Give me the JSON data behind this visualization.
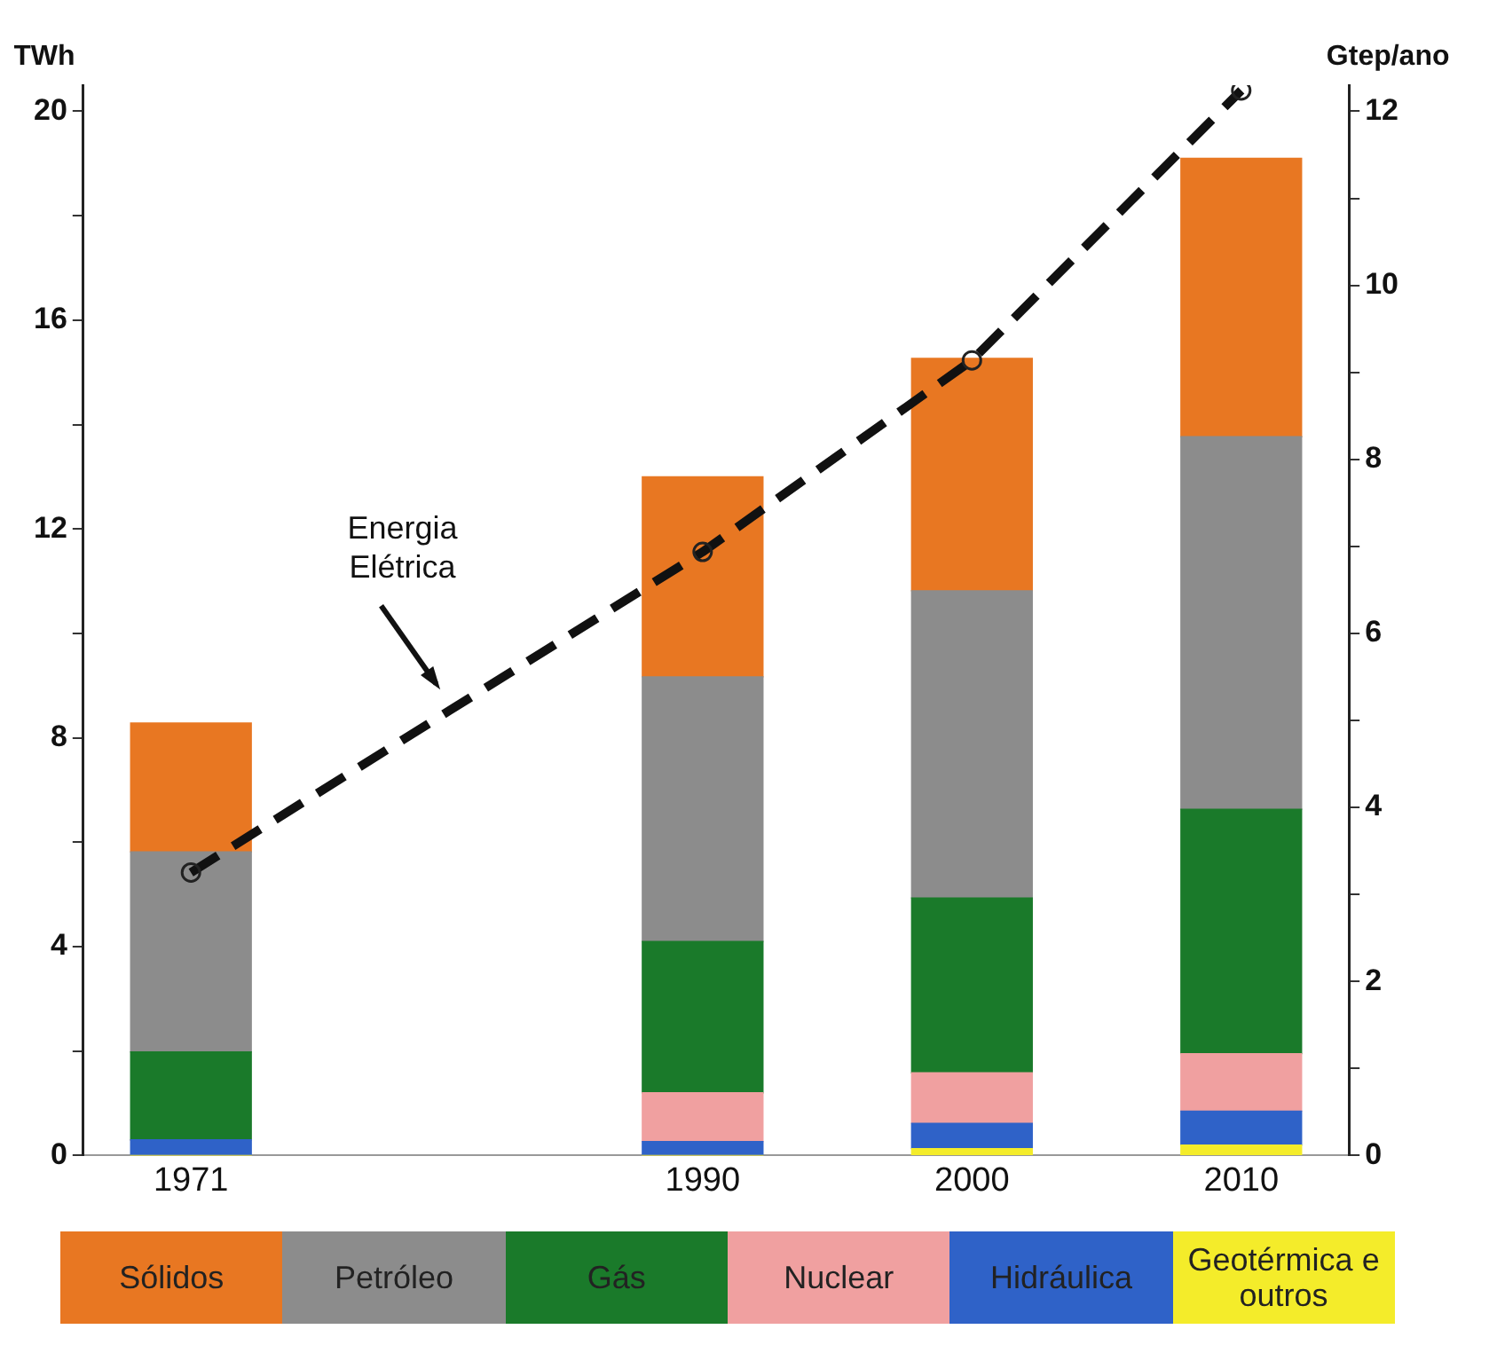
{
  "chart_data": {
    "type": "bar",
    "stacked": true,
    "ylabel": "TWh",
    "y2label": "Gtep/ano",
    "x": [
      1971,
      1990,
      2000,
      2010
    ],
    "xlim": [
      1967,
      2014
    ],
    "xticks": [
      1971,
      1990,
      2000,
      2010
    ],
    "ylim": [
      0,
      20.5
    ],
    "yticks": [
      0,
      {
        "value": 2,
        "label": null
      },
      4,
      {
        "value": 6,
        "label": null
      },
      8,
      {
        "value": 10,
        "label": null
      },
      12,
      {
        "value": 14,
        "label": null
      },
      16,
      {
        "value": 18,
        "label": null
      },
      20
    ],
    "y2lim": [
      0,
      12.3
    ],
    "y2ticks": [
      0,
      {
        "value": 1,
        "label": null
      },
      2,
      {
        "value": 3,
        "label": null
      },
      4,
      {
        "value": 5,
        "label": null
      },
      6,
      {
        "value": 7,
        "label": null
      },
      8,
      {
        "value": 9,
        "label": null
      },
      10,
      {
        "value": 11,
        "label": null
      },
      12
    ],
    "series": [
      {
        "name": "Geotérmica e outros",
        "color": "#f4ec2a",
        "axis": "y2",
        "values": [
          0,
          0,
          0.08,
          0.12
        ]
      },
      {
        "name": "Hidráulica",
        "color": "#2f62c8",
        "axis": "y2",
        "values": [
          0.18,
          0.16,
          0.29,
          0.39
        ]
      },
      {
        "name": "Nuclear",
        "color": "#f0a0a0",
        "axis": "y2",
        "values": [
          0,
          0.56,
          0.58,
          0.66
        ]
      },
      {
        "name": "Gás",
        "color": "#1a7a2a",
        "axis": "y2",
        "values": [
          1.01,
          1.74,
          2.01,
          2.81
        ]
      },
      {
        "name": "Petróleo",
        "color": "#8c8c8c",
        "axis": "y2",
        "values": [
          2.3,
          3.04,
          3.53,
          4.28
        ]
      },
      {
        "name": "Sólidos",
        "color": "#e87722",
        "axis": "y2",
        "values": [
          1.48,
          2.3,
          2.67,
          3.2
        ]
      },
      {
        "name": "Energia Elétrica",
        "type": "line",
        "color": "#111111",
        "marker": "circle",
        "line_style": "dashed",
        "values": [
          5.42,
          11.56,
          15.23,
          20.4
        ]
      }
    ],
    "grid": false,
    "legend": "bottom"
  }
}
